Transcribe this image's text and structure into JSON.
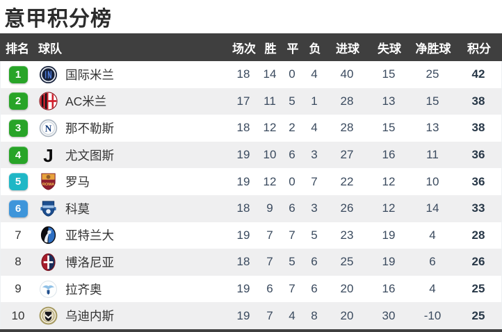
{
  "title": "意甲积分榜",
  "colors": {
    "header_bg": "#3f3f3f",
    "row_alt_bg": "#efeff0",
    "badge_green": "#28a428",
    "badge_teal": "#1fb7c6",
    "badge_blue": "#3e95da"
  },
  "table": {
    "headers": [
      "排名",
      "球队",
      "场次",
      "胜",
      "平",
      "负",
      "进球",
      "失球",
      "净胜球",
      "积分"
    ],
    "rows": [
      {
        "rank": "1",
        "badge": "green",
        "team": "国际米兰",
        "logo": "inter",
        "logo_name": "inter-milan-logo",
        "played": "18",
        "win": "14",
        "draw": "0",
        "loss": "4",
        "gf": "40",
        "ga": "15",
        "gd": "25",
        "pts": "42"
      },
      {
        "rank": "2",
        "badge": "green",
        "team": "AC米兰",
        "logo": "milan",
        "logo_name": "ac-milan-logo",
        "played": "17",
        "win": "11",
        "draw": "5",
        "loss": "1",
        "gf": "28",
        "ga": "13",
        "gd": "15",
        "pts": "38"
      },
      {
        "rank": "3",
        "badge": "green",
        "team": "那不勒斯",
        "logo": "napoli",
        "logo_name": "napoli-logo",
        "played": "18",
        "win": "12",
        "draw": "2",
        "loss": "4",
        "gf": "28",
        "ga": "15",
        "gd": "13",
        "pts": "38"
      },
      {
        "rank": "4",
        "badge": "green",
        "team": "尤文图斯",
        "logo": "juventus",
        "logo_name": "juventus-logo",
        "played": "19",
        "win": "10",
        "draw": "6",
        "loss": "3",
        "gf": "27",
        "ga": "16",
        "gd": "11",
        "pts": "36"
      },
      {
        "rank": "5",
        "badge": "teal",
        "team": "罗马",
        "logo": "roma",
        "logo_name": "roma-logo",
        "played": "19",
        "win": "12",
        "draw": "0",
        "loss": "7",
        "gf": "22",
        "ga": "12",
        "gd": "10",
        "pts": "36"
      },
      {
        "rank": "6",
        "badge": "blue",
        "team": "科莫",
        "logo": "como",
        "logo_name": "como-logo",
        "played": "18",
        "win": "9",
        "draw": "6",
        "loss": "3",
        "gf": "26",
        "ga": "12",
        "gd": "14",
        "pts": "33"
      },
      {
        "rank": "7",
        "badge": "",
        "team": "亚特兰大",
        "logo": "atalanta",
        "logo_name": "atalanta-logo",
        "played": "19",
        "win": "7",
        "draw": "7",
        "loss": "5",
        "gf": "23",
        "ga": "19",
        "gd": "4",
        "pts": "28"
      },
      {
        "rank": "8",
        "badge": "",
        "team": "博洛尼亚",
        "logo": "bologna",
        "logo_name": "bologna-logo",
        "played": "18",
        "win": "7",
        "draw": "5",
        "loss": "6",
        "gf": "25",
        "ga": "19",
        "gd": "6",
        "pts": "26"
      },
      {
        "rank": "9",
        "badge": "",
        "team": "拉齐奥",
        "logo": "lazio",
        "logo_name": "lazio-logo",
        "played": "19",
        "win": "6",
        "draw": "7",
        "loss": "6",
        "gf": "20",
        "ga": "16",
        "gd": "4",
        "pts": "25"
      },
      {
        "rank": "10",
        "badge": "",
        "team": "乌迪内斯",
        "logo": "udinese",
        "logo_name": "udinese-logo",
        "played": "19",
        "win": "7",
        "draw": "4",
        "loss": "8",
        "gf": "20",
        "ga": "30",
        "gd": "-10",
        "pts": "25"
      }
    ]
  }
}
